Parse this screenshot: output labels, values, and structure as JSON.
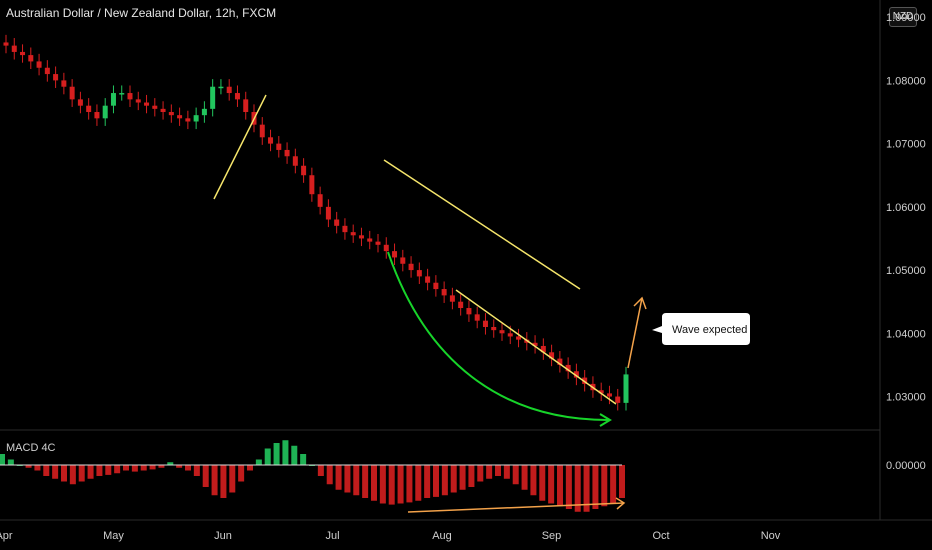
{
  "header": {
    "title": "Australian Dollar / New Zealand Dollar, 12h, FXCM",
    "currency_badge": "NZD"
  },
  "macd": {
    "label": "MACD 4C",
    "zero_label": "0.00000"
  },
  "annotation": {
    "callout": "Wave expected"
  },
  "colors": {
    "up": "#22c55e",
    "down": "#d61f1f",
    "channel": "#f5e56b",
    "curve": "#17d42a",
    "arrow": "#f3a24a",
    "macd_pos": "#22c55e",
    "macd_neg": "#d61f1f"
  },
  "chart_data": {
    "type": "line",
    "title": "Australian Dollar / New Zealand Dollar, 12h, FXCM",
    "series": [
      {
        "values": [
          1.0855,
          1.0845,
          1.084,
          1.083,
          1.082,
          1.081,
          1.08,
          1.079,
          1.077,
          1.076,
          1.075,
          1.074,
          1.076,
          1.078,
          1.078,
          1.077,
          1.0765,
          1.076,
          1.0755,
          1.075,
          1.0745,
          1.074,
          1.0735,
          1.0745,
          1.0755,
          1.079,
          1.079,
          1.078,
          1.077,
          1.075,
          1.073,
          1.071,
          1.07,
          1.069,
          1.068,
          1.0665,
          1.065,
          1.062,
          1.06,
          1.058,
          1.057,
          1.056,
          1.0555,
          1.055,
          1.0545,
          1.054,
          1.053,
          1.052,
          1.051,
          1.05,
          1.049,
          1.048,
          1.047,
          1.046,
          1.045,
          1.044,
          1.043,
          1.042,
          1.041,
          1.0405,
          1.04,
          1.0395,
          1.039,
          1.0385,
          1.038,
          1.037,
          1.036,
          1.035,
          1.034,
          1.033,
          1.032,
          1.031,
          1.0305,
          1.03,
          1.029,
          1.0335
        ]
      }
    ],
    "y_ticks": [
      "1.03000",
      "1.04000",
      "1.05000",
      "1.06000",
      "1.07000",
      "1.08000"
    ],
    "y_top_label": "1.09000",
    "x_ticks": [
      "Apr",
      "May",
      "Jun",
      "Jul",
      "Aug",
      "Sep",
      "Oct",
      "Nov"
    ],
    "ylim": [
      1.0255,
      1.0905
    ],
    "macd_hist": [
      0.2,
      0.1,
      0.0,
      -0.05,
      -0.1,
      -0.2,
      -0.25,
      -0.3,
      -0.35,
      -0.3,
      -0.25,
      -0.2,
      -0.18,
      -0.15,
      -0.1,
      -0.12,
      -0.1,
      -0.08,
      -0.05,
      0.05,
      -0.05,
      -0.1,
      -0.2,
      -0.4,
      -0.55,
      -0.6,
      -0.5,
      -0.3,
      -0.1,
      0.1,
      0.3,
      0.4,
      0.45,
      0.35,
      0.2,
      0.0,
      -0.2,
      -0.35,
      -0.45,
      -0.5,
      -0.55,
      -0.6,
      -0.65,
      -0.7,
      -0.72,
      -0.7,
      -0.68,
      -0.65,
      -0.6,
      -0.58,
      -0.55,
      -0.5,
      -0.45,
      -0.4,
      -0.3,
      -0.25,
      -0.2,
      -0.25,
      -0.35,
      -0.45,
      -0.55,
      -0.65,
      -0.7,
      -0.75,
      -0.8,
      -0.85,
      -0.85,
      -0.8,
      -0.75,
      -0.7,
      -0.6
    ]
  }
}
